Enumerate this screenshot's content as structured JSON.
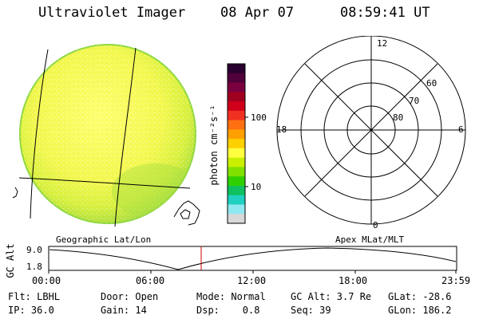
{
  "header": {
    "instrument": "Ultraviolet Imager",
    "date": "08 Apr 07",
    "time": "08:59:41 UT"
  },
  "colorbar": {
    "unit_label": "photon cm⁻²s⁻¹",
    "tick_labels": [
      "100",
      "10"
    ],
    "colors": [
      "#2a0030",
      "#50003a",
      "#7a0040",
      "#a00020",
      "#d0001a",
      "#f03020",
      "#ff7010",
      "#ffa000",
      "#ffd000",
      "#ffff40",
      "#c8f000",
      "#80e000",
      "#30d000",
      "#10c060",
      "#20d0c0",
      "#90e8f0",
      "#d8d8d8"
    ]
  },
  "polar_plot": {
    "radial_labels": [
      "60",
      "70",
      "80"
    ],
    "mlt_labels": [
      "12",
      "18",
      "6",
      "0"
    ]
  },
  "timeline": {
    "left_label": "Geographic Lat/Lon",
    "right_label": "Apex MLat/MLT",
    "y_axis_label": "GC Alt",
    "y_ticks": [
      "9.0",
      "1.8"
    ],
    "x_ticks": [
      "00:00",
      "06:00",
      "12:00",
      "18:00",
      "23:59"
    ],
    "marker_color": "#cc0000"
  },
  "info": {
    "row1": {
      "filter": "Flt: LBHL",
      "door": "Door: Open",
      "mode": "Mode: Normal",
      "gc_alt": "GC Alt: 3.7 Re",
      "glat": "GLat: -28.6"
    },
    "row2": {
      "ip": "IP: 36.0",
      "gain": "Gain: 14",
      "dsp": "Dsp:    0.8",
      "seq": "Seq: 39",
      "glon": "GLon: 186.2"
    }
  }
}
